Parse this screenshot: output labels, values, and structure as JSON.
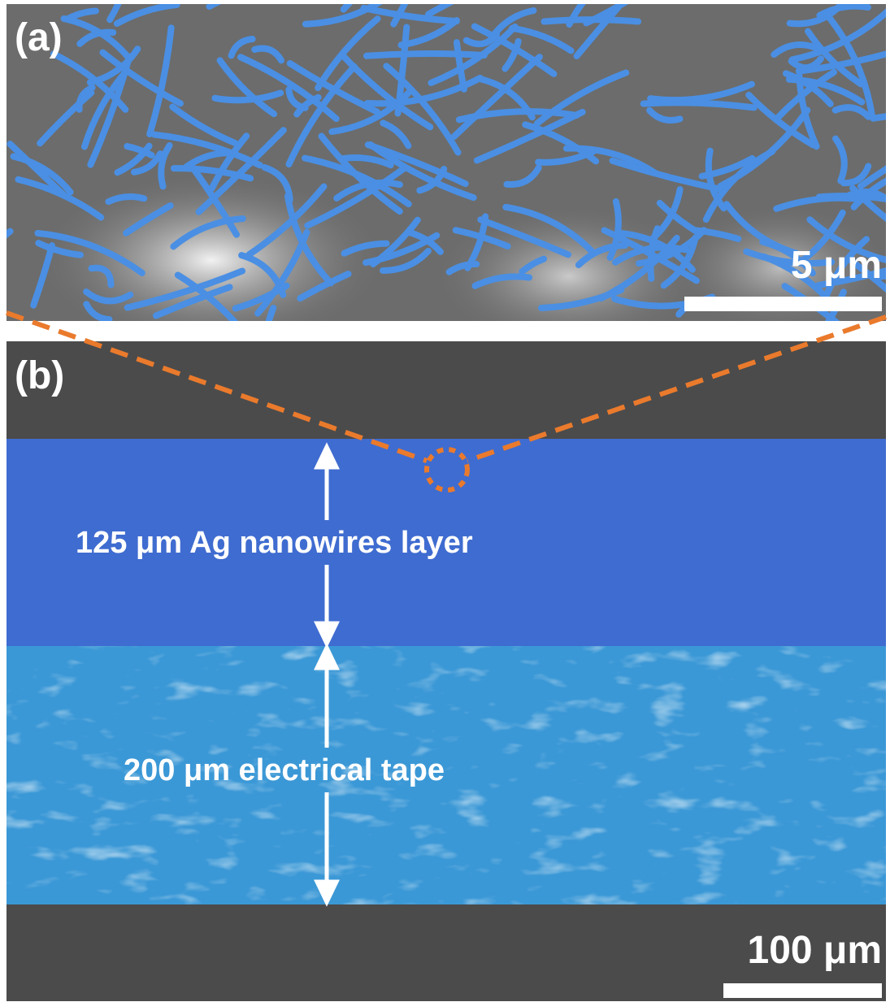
{
  "panels": [
    {
      "label": "(a)",
      "scale_bar": "5 μm"
    },
    {
      "label": "(b)",
      "annotations": [
        "125 μm Ag nanowires layer",
        "200 μm electrical tape"
      ],
      "scale_bar": "100 μm"
    }
  ]
}
